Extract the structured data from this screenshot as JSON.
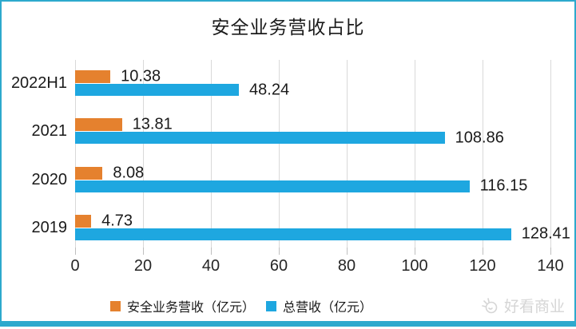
{
  "frame": {
    "border_color": "#2da9cd"
  },
  "chart_data": {
    "type": "bar",
    "orientation": "horizontal",
    "title": "安全业务营收占比",
    "categories": [
      "2022H1",
      "2021",
      "2020",
      "2019"
    ],
    "series": [
      {
        "name": "安全业务营收（亿元）",
        "color": "#e5812e",
        "values": [
          10.38,
          13.81,
          8.08,
          4.73
        ]
      },
      {
        "name": "总营收（亿元）",
        "color": "#1ea7e0",
        "values": [
          48.24,
          108.86,
          116.15,
          128.41
        ]
      }
    ],
    "x_ticks": [
      0,
      20,
      40,
      60,
      80,
      100,
      120,
      140
    ],
    "xlim": [
      0,
      140
    ],
    "grid": "vertical-light-gray",
    "legend_position": "bottom",
    "data_labels": "outside-end, 2 decimals"
  },
  "watermark": {
    "text": "好看商业",
    "icon": "sun-logo-icon"
  }
}
